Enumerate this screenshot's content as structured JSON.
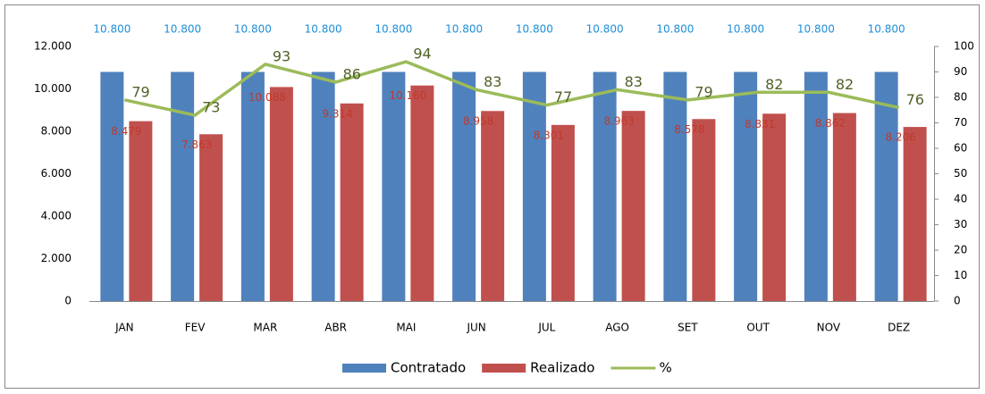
{
  "chart_data": {
    "type": "bar",
    "categories": [
      "JAN",
      "FEV",
      "MAR",
      "ABR",
      "MAI",
      "JUN",
      "JUL",
      "AGO",
      "SET",
      "OUT",
      "NOV",
      "DEZ"
    ],
    "series": [
      {
        "name": "Contratado",
        "color": "#4f81bd",
        "type": "bar",
        "values": [
          10800,
          10800,
          10800,
          10800,
          10800,
          10800,
          10800,
          10800,
          10800,
          10800,
          10800,
          10800
        ],
        "value_labels": [
          "10.800",
          "10.800",
          "10.800",
          "10.800",
          "10.800",
          "10.800",
          "10.800",
          "10.800",
          "10.800",
          "10.800",
          "10.800",
          "10.800"
        ]
      },
      {
        "name": "Realizado",
        "color": "#c0504d",
        "type": "bar",
        "values": [
          8479,
          7863,
          10088,
          9314,
          10160,
          8958,
          8301,
          8963,
          8578,
          8831,
          8862,
          8206
        ],
        "value_labels": [
          "8.479",
          "7.863",
          "10.088",
          "9.314",
          "10.160",
          "8.958",
          "8.301",
          "8.963",
          "8.578",
          "8.831",
          "8.862",
          "8.206"
        ]
      },
      {
        "name": "%",
        "color": "#9bbb59",
        "type": "line",
        "axis": "y2",
        "values": [
          79,
          73,
          93,
          86,
          94,
          83,
          77,
          83,
          79,
          82,
          82,
          76
        ]
      }
    ],
    "ylim": [
      0,
      12000
    ],
    "yticks": [
      0,
      {
        "value": 2000,
        "label": "2.000"
      },
      {
        "value": 4000,
        "label": "4.000"
      },
      {
        "value": 6000,
        "label": "6.000"
      },
      {
        "value": 8000,
        "label": "8.000"
      },
      {
        "value": 10000,
        "label": "10.000"
      },
      {
        "value": 12000,
        "label": "12.000"
      }
    ],
    "y2lim": [
      0,
      100
    ],
    "y2ticks": [
      0,
      10,
      20,
      30,
      40,
      50,
      60,
      70,
      80,
      90,
      100
    ],
    "grid": false,
    "legend": "bottom"
  }
}
